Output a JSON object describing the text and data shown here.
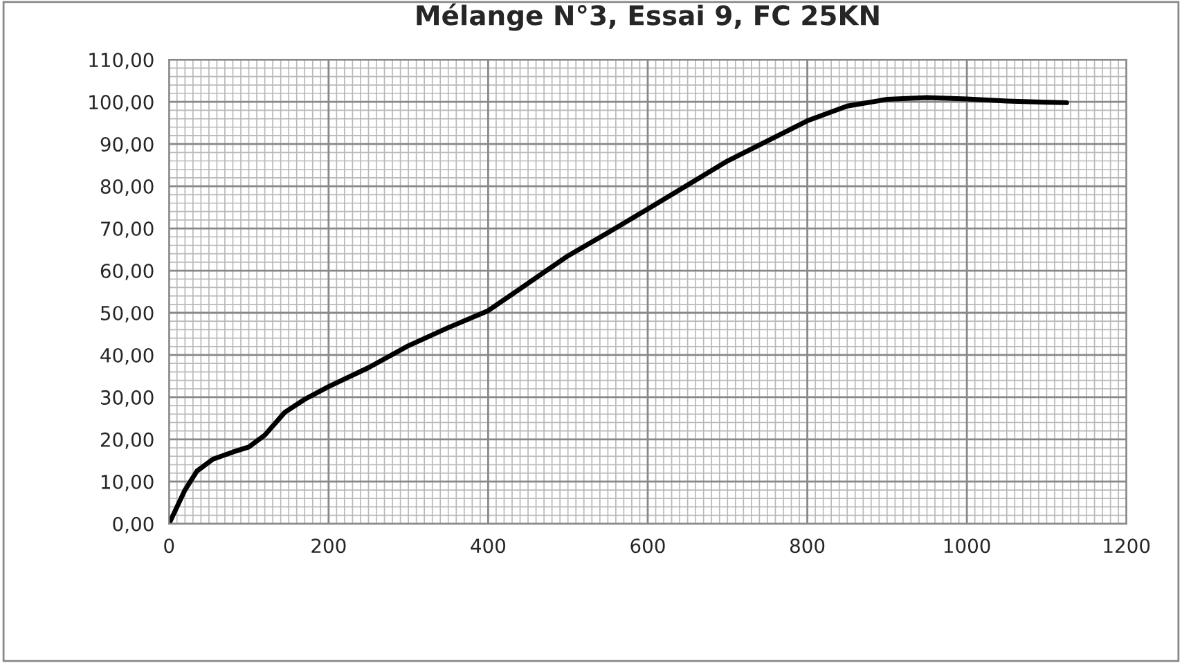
{
  "chart_data": {
    "type": "line",
    "title": "Mélange N°3, Essai 9, FC 25KN",
    "x": [
      0,
      20,
      35,
      55,
      80,
      100,
      120,
      145,
      170,
      200,
      250,
      300,
      350,
      400,
      450,
      500,
      550,
      600,
      700,
      800,
      850,
      900,
      950,
      1000,
      1050,
      1100,
      1125
    ],
    "series": [
      {
        "color": "#000000",
        "values": [
          0,
          8,
          12.5,
          15.3,
          17,
          18.2,
          21,
          26.4,
          29.5,
          32.5,
          37,
          42.2,
          46.5,
          50.5,
          57,
          63.5,
          69,
          74.6,
          86,
          95.5,
          99,
          100.6,
          101,
          100.7,
          100.2,
          99.9,
          99.8
        ]
      }
    ],
    "xlim": [
      0,
      1200
    ],
    "xticks": [
      0,
      200,
      400,
      600,
      800,
      1000,
      1200
    ],
    "ylim": [
      0,
      110
    ],
    "yticks": [
      {
        "value": 0,
        "label": "0,00"
      },
      {
        "value": 10,
        "label": "10,00"
      },
      {
        "value": 20,
        "label": "20,00"
      },
      {
        "value": 30,
        "label": "30,00"
      },
      {
        "value": 40,
        "label": "40,00"
      },
      {
        "value": 50,
        "label": "50,00"
      },
      {
        "value": 60,
        "label": "60,00"
      },
      {
        "value": 70,
        "label": "70,00"
      },
      {
        "value": 80,
        "label": "80,00"
      },
      {
        "value": 90,
        "label": "90,00"
      },
      {
        "value": 100,
        "label": "100,00"
      },
      {
        "value": 110,
        "label": "110,00"
      }
    ],
    "grid": true,
    "marker": "none",
    "line_style": "solid"
  }
}
